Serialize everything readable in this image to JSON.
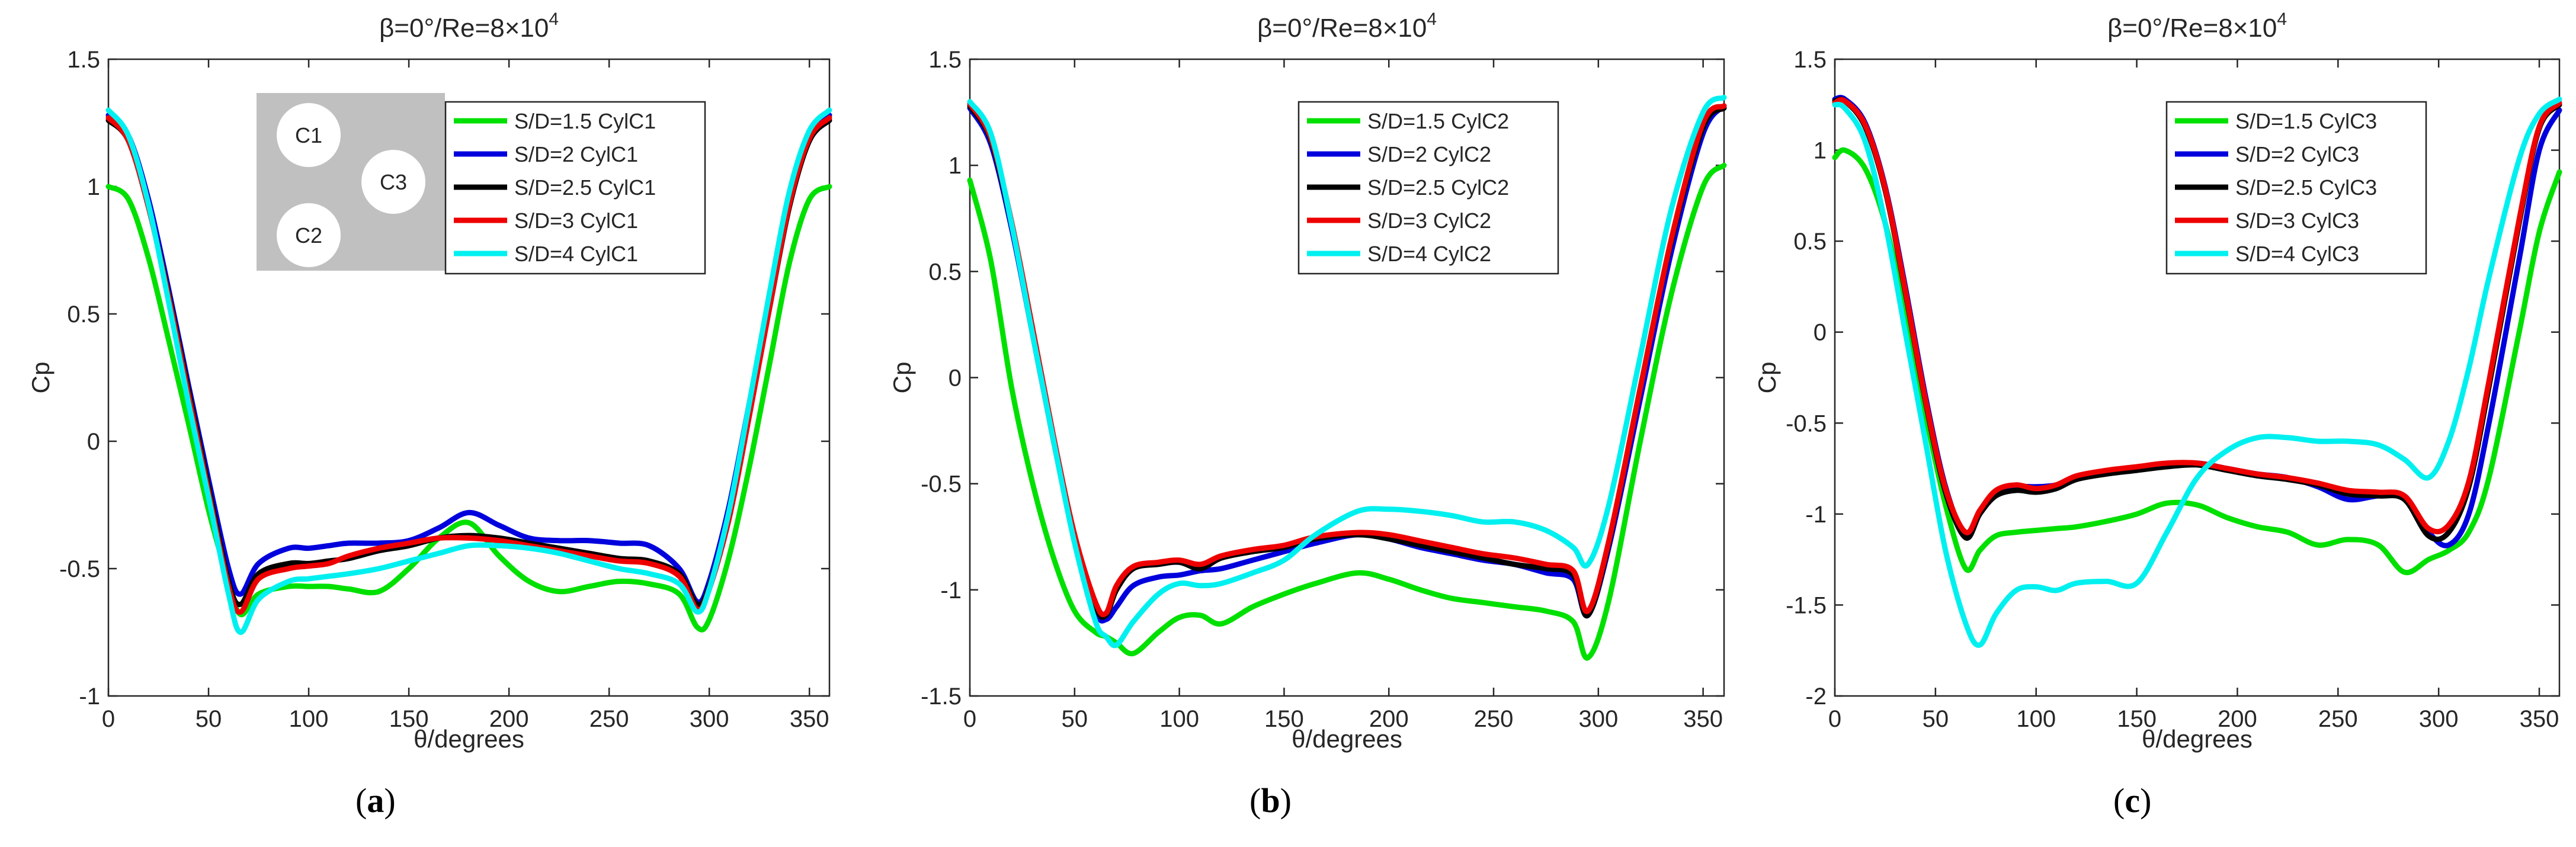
{
  "figure": {
    "panel_labels": [
      {
        "open": "(",
        "letter": "a",
        "close": ")"
      },
      {
        "open": "(",
        "letter": "b",
        "close": ")"
      },
      {
        "open": "(",
        "letter": "c",
        "close": ")"
      }
    ],
    "inset": {
      "cylinders": [
        "C1",
        "C3",
        "C2"
      ]
    },
    "colors": {
      "axis": "#262626",
      "inset_bg": "#c0c0c0",
      "circle_fill": "#ffffff"
    }
  },
  "chart_data": [
    {
      "type": "line",
      "title_main": "β=0°/Re=8×10",
      "title_exp": "4",
      "xlabel": "θ/degrees",
      "ylabel": "Cp",
      "xlim": [
        0,
        360
      ],
      "ylim": [
        -1,
        1.5
      ],
      "xticks": [
        0,
        50,
        100,
        150,
        200,
        250,
        300,
        350
      ],
      "yticks": [
        -1,
        -0.5,
        0,
        0.5,
        1,
        1.5
      ],
      "ytick_labels": [
        "-1",
        "-0.5",
        "0",
        "0.5",
        "1",
        "1.5"
      ],
      "legend_position": "top-right",
      "x": [
        0,
        10,
        20,
        30,
        40,
        50,
        60,
        66,
        75,
        90,
        100,
        110,
        120,
        135,
        150,
        165,
        180,
        195,
        210,
        225,
        240,
        255,
        270,
        285,
        294,
        300,
        310,
        320,
        330,
        340,
        350,
        360
      ],
      "series": [
        {
          "name": "S/D=1.5 CylC1",
          "color": "#00e000",
          "values": [
            1.0,
            0.95,
            0.72,
            0.4,
            0.07,
            -0.27,
            -0.55,
            -0.68,
            -0.6,
            -0.57,
            -0.57,
            -0.57,
            -0.58,
            -0.59,
            -0.5,
            -0.38,
            -0.32,
            -0.45,
            -0.55,
            -0.59,
            -0.57,
            -0.55,
            -0.56,
            -0.6,
            -0.73,
            -0.7,
            -0.45,
            -0.1,
            0.3,
            0.7,
            0.95,
            1.0
          ]
        },
        {
          "name": "S/D=2 CylC1",
          "color": "#0000dd",
          "values": [
            1.28,
            1.2,
            0.95,
            0.6,
            0.22,
            -0.15,
            -0.5,
            -0.6,
            -0.48,
            -0.42,
            -0.42,
            -0.41,
            -0.4,
            -0.4,
            -0.39,
            -0.34,
            -0.28,
            -0.33,
            -0.38,
            -0.39,
            -0.39,
            -0.4,
            -0.41,
            -0.5,
            -0.63,
            -0.55,
            -0.25,
            0.15,
            0.55,
            0.95,
            1.2,
            1.28
          ]
        },
        {
          "name": "S/D=2.5 CylC1",
          "color": "#000000",
          "values": [
            1.26,
            1.18,
            0.92,
            0.58,
            0.2,
            -0.18,
            -0.55,
            -0.64,
            -0.52,
            -0.48,
            -0.48,
            -0.47,
            -0.46,
            -0.43,
            -0.41,
            -0.38,
            -0.37,
            -0.38,
            -0.4,
            -0.42,
            -0.44,
            -0.46,
            -0.47,
            -0.52,
            -0.64,
            -0.57,
            -0.28,
            0.12,
            0.52,
            0.92,
            1.18,
            1.26
          ]
        },
        {
          "name": "S/D=3 CylC1",
          "color": "#ee0000",
          "values": [
            1.27,
            1.18,
            0.92,
            0.57,
            0.18,
            -0.2,
            -0.57,
            -0.67,
            -0.54,
            -0.5,
            -0.49,
            -0.48,
            -0.45,
            -0.42,
            -0.4,
            -0.38,
            -0.38,
            -0.39,
            -0.41,
            -0.43,
            -0.45,
            -0.47,
            -0.48,
            -0.53,
            -0.66,
            -0.58,
            -0.3,
            0.1,
            0.52,
            0.93,
            1.19,
            1.27
          ]
        },
        {
          "name": "S/D=4 CylC1",
          "color": "#00f0f0",
          "values": [
            1.3,
            1.2,
            0.93,
            0.55,
            0.15,
            -0.22,
            -0.6,
            -0.75,
            -0.62,
            -0.55,
            -0.54,
            -0.53,
            -0.52,
            -0.5,
            -0.47,
            -0.44,
            -0.41,
            -0.41,
            -0.42,
            -0.44,
            -0.47,
            -0.5,
            -0.52,
            -0.56,
            -0.67,
            -0.58,
            -0.27,
            0.15,
            0.58,
            0.98,
            1.22,
            1.3
          ]
        }
      ]
    },
    {
      "type": "line",
      "title_main": "β=0°/Re=8×10",
      "title_exp": "4",
      "xlabel": "θ/degrees",
      "ylabel": "Cp",
      "xlim": [
        0,
        360
      ],
      "ylim": [
        -1.5,
        1.5
      ],
      "xticks": [
        0,
        50,
        100,
        150,
        200,
        250,
        300,
        350
      ],
      "yticks": [
        -1.5,
        -1,
        -0.5,
        0,
        0.5,
        1,
        1.5
      ],
      "ytick_labels": [
        "-1.5",
        "-1",
        "-0.5",
        "0",
        "0.5",
        "1",
        "1.5"
      ],
      "legend_position": "top-right",
      "x": [
        0,
        10,
        20,
        30,
        40,
        50,
        60,
        65,
        70,
        78,
        90,
        100,
        110,
        120,
        135,
        150,
        165,
        185,
        200,
        215,
        230,
        245,
        260,
        275,
        288,
        295,
        305,
        320,
        335,
        350,
        360
      ],
      "series": [
        {
          "name": "S/D=1.5 CylC2",
          "color": "#00e000",
          "values": [
            0.93,
            0.55,
            -0.05,
            -0.5,
            -0.85,
            -1.1,
            -1.2,
            -1.22,
            -1.25,
            -1.3,
            -1.2,
            -1.13,
            -1.12,
            -1.16,
            -1.08,
            -1.02,
            -0.97,
            -0.92,
            -0.95,
            -1.0,
            -1.04,
            -1.06,
            -1.08,
            -1.1,
            -1.15,
            -1.32,
            -1.05,
            -0.3,
            0.4,
            0.9,
            1.0
          ]
        },
        {
          "name": "S/D=2 CylC2",
          "color": "#0000dd",
          "values": [
            1.27,
            1.1,
            0.7,
            0.2,
            -0.3,
            -0.75,
            -1.1,
            -1.14,
            -1.08,
            -0.98,
            -0.94,
            -0.93,
            -0.91,
            -0.9,
            -0.86,
            -0.82,
            -0.78,
            -0.74,
            -0.76,
            -0.8,
            -0.83,
            -0.86,
            -0.88,
            -0.92,
            -0.95,
            -1.12,
            -0.8,
            -0.1,
            0.6,
            1.15,
            1.28
          ]
        },
        {
          "name": "S/D=2.5 CylC2",
          "color": "#000000",
          "values": [
            1.28,
            1.12,
            0.72,
            0.22,
            -0.3,
            -0.76,
            -1.08,
            -1.12,
            -1.0,
            -0.9,
            -0.88,
            -0.87,
            -0.9,
            -0.85,
            -0.82,
            -0.8,
            -0.76,
            -0.74,
            -0.76,
            -0.79,
            -0.82,
            -0.85,
            -0.88,
            -0.9,
            -0.93,
            -1.12,
            -0.78,
            -0.05,
            0.65,
            1.18,
            1.27
          ]
        },
        {
          "name": "S/D=3 CylC2",
          "color": "#ee0000",
          "values": [
            1.29,
            1.13,
            0.73,
            0.23,
            -0.28,
            -0.74,
            -1.06,
            -1.11,
            -0.98,
            -0.89,
            -0.87,
            -0.86,
            -0.88,
            -0.84,
            -0.81,
            -0.79,
            -0.75,
            -0.73,
            -0.74,
            -0.77,
            -0.8,
            -0.83,
            -0.85,
            -0.88,
            -0.91,
            -1.1,
            -0.77,
            -0.05,
            0.66,
            1.2,
            1.28
          ]
        },
        {
          "name": "S/D=4 CylC2",
          "color": "#00f0f0",
          "values": [
            1.3,
            1.15,
            0.72,
            0.2,
            -0.3,
            -0.78,
            -1.15,
            -1.22,
            -1.26,
            -1.15,
            -1.02,
            -0.97,
            -0.98,
            -0.97,
            -0.92,
            -0.86,
            -0.74,
            -0.63,
            -0.62,
            -0.63,
            -0.65,
            -0.68,
            -0.68,
            -0.72,
            -0.8,
            -0.88,
            -0.6,
            0.1,
            0.8,
            1.25,
            1.32
          ]
        }
      ]
    },
    {
      "type": "line",
      "title_main": "β=0°/Re=8×10",
      "title_exp": "4",
      "xlabel": "θ/degrees",
      "ylabel": "Cp",
      "xlim": [
        0,
        360
      ],
      "ylim": [
        -2,
        1.5
      ],
      "xticks": [
        0,
        50,
        100,
        150,
        200,
        250,
        300,
        350
      ],
      "yticks": [
        -2,
        -1.5,
        -1,
        -0.5,
        0,
        0.5,
        1,
        1.5
      ],
      "ytick_labels": [
        "-2",
        "-1.5",
        "-1",
        "-0.5",
        "0",
        "0.5",
        "1",
        "1.5"
      ],
      "legend_position": "top-right",
      "x": [
        0,
        5,
        15,
        25,
        35,
        45,
        55,
        65,
        72,
        80,
        90,
        100,
        110,
        120,
        135,
        150,
        165,
        180,
        195,
        210,
        225,
        240,
        255,
        270,
        283,
        295,
        305,
        315,
        325,
        340,
        350,
        360
      ],
      "series": [
        {
          "name": "S/D=1.5 CylC3",
          "color": "#00e000",
          "values": [
            0.96,
            1.0,
            0.9,
            0.6,
            0.1,
            -0.45,
            -0.95,
            -1.3,
            -1.2,
            -1.12,
            -1.1,
            -1.09,
            -1.08,
            -1.07,
            -1.04,
            -1.0,
            -0.94,
            -0.95,
            -1.02,
            -1.07,
            -1.1,
            -1.17,
            -1.14,
            -1.17,
            -1.32,
            -1.25,
            -1.2,
            -1.1,
            -0.8,
            0.0,
            0.55,
            0.88
          ]
        },
        {
          "name": "S/D=2 CylC3",
          "color": "#0000dd",
          "values": [
            1.28,
            1.28,
            1.15,
            0.8,
            0.25,
            -0.35,
            -0.85,
            -1.12,
            -1.0,
            -0.88,
            -0.85,
            -0.85,
            -0.84,
            -0.8,
            -0.77,
            -0.75,
            -0.73,
            -0.72,
            -0.75,
            -0.78,
            -0.8,
            -0.85,
            -0.92,
            -0.9,
            -0.9,
            -1.1,
            -1.17,
            -1.0,
            -0.5,
            0.4,
            1.0,
            1.22
          ]
        },
        {
          "name": "S/D=2.5 CylC3",
          "color": "#000000",
          "values": [
            1.27,
            1.27,
            1.13,
            0.78,
            0.22,
            -0.38,
            -0.88,
            -1.13,
            -1.0,
            -0.9,
            -0.87,
            -0.88,
            -0.86,
            -0.81,
            -0.78,
            -0.76,
            -0.74,
            -0.73,
            -0.76,
            -0.79,
            -0.81,
            -0.84,
            -0.89,
            -0.9,
            -0.92,
            -1.12,
            -1.1,
            -0.85,
            -0.3,
            0.6,
            1.12,
            1.25
          ]
        },
        {
          "name": "S/D=3 CylC3",
          "color": "#ee0000",
          "values": [
            1.26,
            1.27,
            1.14,
            0.79,
            0.23,
            -0.37,
            -0.86,
            -1.1,
            -0.98,
            -0.87,
            -0.84,
            -0.86,
            -0.84,
            -0.79,
            -0.76,
            -0.74,
            -0.72,
            -0.72,
            -0.75,
            -0.78,
            -0.8,
            -0.83,
            -0.87,
            -0.88,
            -0.9,
            -1.08,
            -1.06,
            -0.82,
            -0.27,
            0.62,
            1.13,
            1.26
          ]
        },
        {
          "name": "S/D=4 CylC3",
          "color": "#00f0f0",
          "values": [
            1.25,
            1.23,
            1.05,
            0.6,
            0.0,
            -0.6,
            -1.2,
            -1.6,
            -1.72,
            -1.55,
            -1.42,
            -1.4,
            -1.42,
            -1.38,
            -1.37,
            -1.38,
            -1.1,
            -0.8,
            -0.65,
            -0.58,
            -0.58,
            -0.6,
            -0.6,
            -0.62,
            -0.7,
            -0.8,
            -0.6,
            -0.2,
            0.3,
            0.95,
            1.2,
            1.28
          ]
        }
      ]
    }
  ]
}
